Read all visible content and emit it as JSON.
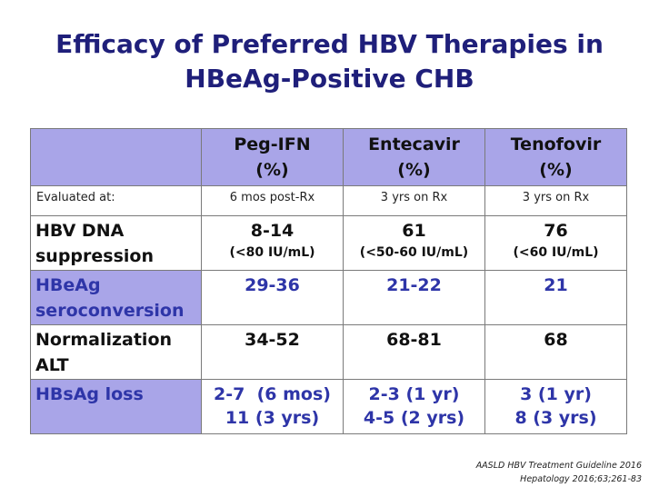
{
  "title": {
    "line1": "Efficacy of Preferred HBV Therapies in",
    "line2": "HBeAg-Positive CHB"
  },
  "table": {
    "headers": [
      {
        "name": "Peg-IFN",
        "unit": "(%)"
      },
      {
        "name": "Entecavir",
        "unit": "(%)"
      },
      {
        "name": "Tenofovir",
        "unit": "(%)"
      }
    ],
    "evaluated": {
      "label": "Evaluated at:",
      "values": [
        "6 mos post-Rx",
        "3 yrs on Rx",
        "3 yrs on Rx"
      ]
    },
    "rows": [
      {
        "label1": "HBV DNA",
        "label2": "suppression",
        "cells": [
          {
            "main": "8-14",
            "sub": "(<80 IU/mL)"
          },
          {
            "main": "61",
            "sub": "(<50-60 IU/mL)"
          },
          {
            "main": "76",
            "sub": "(<60 IU/mL)"
          }
        ]
      },
      {
        "label1": "HBeAg",
        "label2": "seroconversion",
        "cells": [
          {
            "main": "29-36",
            "sub": ""
          },
          {
            "main": "21-22",
            "sub": ""
          },
          {
            "main": "21",
            "sub": ""
          }
        ]
      },
      {
        "label1": "Normalization",
        "label2": "ALT",
        "cells": [
          {
            "main": "34-52",
            "sub": ""
          },
          {
            "main": "68-81",
            "sub": ""
          },
          {
            "main": "68",
            "sub": ""
          }
        ]
      },
      {
        "label1": "HBsAg loss",
        "label2": "",
        "cells": [
          {
            "main": "2-7  (6 mos)",
            "sub": "11 (3 yrs)"
          },
          {
            "main": "2-3 (1 yr)",
            "sub": "4-5 (2 yrs)"
          },
          {
            "main": "3 (1 yr)",
            "sub": "8 (3 yrs)"
          }
        ]
      }
    ]
  },
  "citation": {
    "line1": "AASLD HBV Treatment Guideline 2016",
    "line2": "Hepatology 2016;63;261-83"
  },
  "colors": {
    "title": "#1f1f7a",
    "header_fill": "#a9a5e8",
    "accent_text": "#2e35a8"
  }
}
